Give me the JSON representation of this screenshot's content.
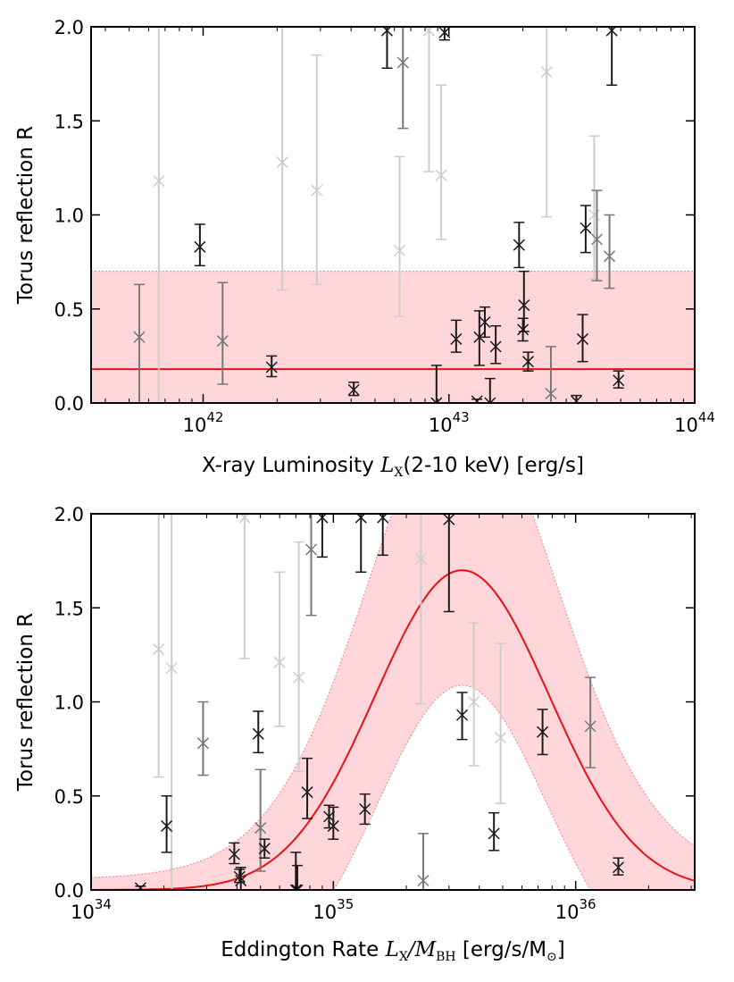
{
  "colors": {
    "band_fill": "#ffd6d9",
    "band_edge": "#f08080",
    "fit_line": "#e8101a",
    "point_dark": "#1a1a1a",
    "point_mid": "#777777",
    "point_light": "#cccccc"
  },
  "chart_data": [
    {
      "type": "scatter",
      "xscale": "log",
      "xlim": [
        3.5e+41,
        1e+44
      ],
      "ylim": [
        0,
        2
      ],
      "ylabel": "Torus reflection R",
      "xlabel": {
        "prefix": "X-ray Luminosity ",
        "var": "L",
        "sub": "X",
        "suffix": "(2-10 keV) [erg/s]"
      },
      "y_ticks": [
        "0.0",
        "0.5",
        "1.0",
        "1.5",
        "2.0"
      ],
      "x_ticks": [
        {
          "base": "10",
          "exp": "42",
          "value": 1e+42
        },
        {
          "base": "10",
          "exp": "43",
          "value": 1e+43
        },
        {
          "base": "10",
          "exp": "44",
          "value": 1e+44
        }
      ],
      "fit": {
        "kind": "constant",
        "value": 0.18,
        "band": [
          0.0,
          0.7
        ]
      },
      "points": [
        {
          "x": 5.5e+41,
          "y": 0.35,
          "lo": 0.0,
          "hi": 0.63,
          "shade": "mid"
        },
        {
          "x": 6.6e+41,
          "y": 1.18,
          "lo": 0.0,
          "hi": 2.0,
          "shade": "light"
        },
        {
          "x": 9.7e+41,
          "y": 0.83,
          "lo": 0.73,
          "hi": 0.95,
          "shade": "dark"
        },
        {
          "x": 1.2e+42,
          "y": 0.33,
          "lo": 0.1,
          "hi": 0.64,
          "shade": "mid"
        },
        {
          "x": 1.9e+42,
          "y": 0.19,
          "lo": 0.14,
          "hi": 0.25,
          "shade": "dark"
        },
        {
          "x": 2.1e+42,
          "y": 1.28,
          "lo": 0.6,
          "hi": 2.0,
          "shade": "light"
        },
        {
          "x": 2.9e+42,
          "y": 1.13,
          "lo": 0.63,
          "hi": 1.85,
          "shade": "light"
        },
        {
          "x": 4.1e+42,
          "y": 0.07,
          "lo": 0.04,
          "hi": 0.11,
          "shade": "dark"
        },
        {
          "x": 5.6e+42,
          "y": 1.98,
          "lo": 1.78,
          "hi": 2.0,
          "shade": "dark"
        },
        {
          "x": 6.3e+42,
          "y": 0.81,
          "lo": 0.46,
          "hi": 1.31,
          "shade": "light"
        },
        {
          "x": 6.5e+42,
          "y": 1.81,
          "lo": 1.46,
          "hi": 2.0,
          "shade": "mid"
        },
        {
          "x": 8.3e+42,
          "y": 1.98,
          "lo": 1.23,
          "hi": 2.0,
          "shade": "light"
        },
        {
          "x": 8.9e+42,
          "y": 0.0,
          "lo": 0.0,
          "hi": 0.2,
          "shade": "dark"
        },
        {
          "x": 9.3e+42,
          "y": 1.21,
          "lo": 0.87,
          "hi": 1.69,
          "shade": "light"
        },
        {
          "x": 9.6e+42,
          "y": 1.97,
          "lo": 1.93,
          "hi": 2.0,
          "shade": "dark"
        },
        {
          "x": 1.07e+43,
          "y": 0.34,
          "lo": 0.27,
          "hi": 0.44,
          "shade": "dark"
        },
        {
          "x": 1.3e+43,
          "y": 0.01,
          "lo": 0.0,
          "hi": 0.02,
          "shade": "dark"
        },
        {
          "x": 1.33e+43,
          "y": 0.35,
          "lo": 0.2,
          "hi": 0.49,
          "shade": "dark"
        },
        {
          "x": 1.4e+43,
          "y": 0.43,
          "lo": 0.35,
          "hi": 0.51,
          "shade": "dark"
        },
        {
          "x": 1.47e+43,
          "y": 0.0,
          "lo": 0.0,
          "hi": 0.13,
          "shade": "dark"
        },
        {
          "x": 1.55e+43,
          "y": 0.3,
          "lo": 0.21,
          "hi": 0.41,
          "shade": "dark"
        },
        {
          "x": 1.93e+43,
          "y": 0.84,
          "lo": 0.72,
          "hi": 0.96,
          "shade": "dark"
        },
        {
          "x": 2e+43,
          "y": 0.39,
          "lo": 0.33,
          "hi": 0.45,
          "shade": "dark"
        },
        {
          "x": 2.02e+43,
          "y": 0.52,
          "lo": 0.38,
          "hi": 0.7,
          "shade": "dark"
        },
        {
          "x": 2.1e+43,
          "y": 0.22,
          "lo": 0.17,
          "hi": 0.27,
          "shade": "dark"
        },
        {
          "x": 2.5e+43,
          "y": 1.76,
          "lo": 0.99,
          "hi": 2.0,
          "shade": "light"
        },
        {
          "x": 2.6e+43,
          "y": 0.05,
          "lo": 0.0,
          "hi": 0.3,
          "shade": "mid"
        },
        {
          "x": 3.3e+43,
          "y": 0.01,
          "lo": 0.0,
          "hi": 0.04,
          "shade": "dark"
        },
        {
          "x": 3.5e+43,
          "y": 0.34,
          "lo": 0.22,
          "hi": 0.47,
          "shade": "dark"
        },
        {
          "x": 3.6e+43,
          "y": 0.93,
          "lo": 0.8,
          "hi": 1.05,
          "shade": "dark"
        },
        {
          "x": 3.9e+43,
          "y": 1.0,
          "lo": 0.66,
          "hi": 1.42,
          "shade": "light"
        },
        {
          "x": 4e+43,
          "y": 0.87,
          "lo": 0.65,
          "hi": 1.13,
          "shade": "mid"
        },
        {
          "x": 4.5e+43,
          "y": 0.78,
          "lo": 0.61,
          "hi": 1.0,
          "shade": "mid"
        },
        {
          "x": 4.6e+43,
          "y": 1.98,
          "lo": 1.69,
          "hi": 2.0,
          "shade": "dark"
        },
        {
          "x": 4.9e+43,
          "y": 0.12,
          "lo": 0.08,
          "hi": 0.17,
          "shade": "dark"
        }
      ]
    },
    {
      "type": "scatter",
      "xscale": "log",
      "xlim": [
        1e+34,
        3.1e+36
      ],
      "ylim": [
        0,
        2
      ],
      "ylabel": "Torus reflection R",
      "xlabel": {
        "prefix": "Eddington Rate ",
        "var": "L",
        "sub": "X",
        "var2": "M",
        "sub2": "BH",
        "suffix": " [erg/s/M",
        "sun": "⊙",
        "close": "]"
      },
      "y_ticks": [
        "0.0",
        "0.5",
        "1.0",
        "1.5",
        "2.0"
      ],
      "x_ticks": [
        {
          "base": "10",
          "exp": "34",
          "value": 1e+34
        },
        {
          "base": "10",
          "exp": "35",
          "value": 1e+35
        },
        {
          "base": "10",
          "exp": "36",
          "value": 1e+36
        }
      ],
      "fit": {
        "kind": "gaussian_in_log",
        "peak_x": 3.4e+35,
        "peak_y": 1.7,
        "sigma_dex": 0.36,
        "band_lower_scale": 0.64,
        "band_upper_add": 0.9,
        "band_upper_width_dex": 0.1,
        "band_floor": 0.06
      },
      "points": [
        {
          "x": 1.6e+34,
          "y": 0.01,
          "lo": 0.0,
          "hi": 0.02,
          "shade": "dark"
        },
        {
          "x": 1.9e+34,
          "y": 1.28,
          "lo": 0.6,
          "hi": 2.0,
          "shade": "light"
        },
        {
          "x": 2.05e+34,
          "y": 0.34,
          "lo": 0.2,
          "hi": 0.5,
          "shade": "dark"
        },
        {
          "x": 2.15e+34,
          "y": 1.18,
          "lo": 0.0,
          "hi": 2.0,
          "shade": "light"
        },
        {
          "x": 2.9e+34,
          "y": 0.78,
          "lo": 0.61,
          "hi": 1.0,
          "shade": "mid"
        },
        {
          "x": 3.9e+34,
          "y": 0.19,
          "lo": 0.14,
          "hi": 0.25,
          "shade": "dark"
        },
        {
          "x": 4.1e+34,
          "y": 0.07,
          "lo": 0.04,
          "hi": 0.11,
          "shade": "dark"
        },
        {
          "x": 4.15e+34,
          "y": 0.05,
          "lo": 0.0,
          "hi": 0.12,
          "shade": "dark"
        },
        {
          "x": 4.3e+34,
          "y": 1.98,
          "lo": 1.23,
          "hi": 2.0,
          "shade": "light"
        },
        {
          "x": 4.9e+34,
          "y": 0.83,
          "lo": 0.73,
          "hi": 0.95,
          "shade": "dark"
        },
        {
          "x": 5e+34,
          "y": 0.33,
          "lo": 0.1,
          "hi": 0.64,
          "shade": "mid"
        },
        {
          "x": 5.2e+34,
          "y": 0.22,
          "lo": 0.17,
          "hi": 0.27,
          "shade": "dark"
        },
        {
          "x": 6e+34,
          "y": 1.21,
          "lo": 0.87,
          "hi": 1.69,
          "shade": "light"
        },
        {
          "x": 7e+34,
          "y": 0.0,
          "lo": 0.0,
          "hi": 0.2,
          "shade": "dark"
        },
        {
          "x": 7.1e+34,
          "y": 0.0,
          "lo": 0.0,
          "hi": 0.13,
          "shade": "dark"
        },
        {
          "x": 7.2e+34,
          "y": 1.13,
          "lo": 0.63,
          "hi": 1.85,
          "shade": "light"
        },
        {
          "x": 7.8e+34,
          "y": 0.52,
          "lo": 0.38,
          "hi": 0.7,
          "shade": "dark"
        },
        {
          "x": 8.1e+34,
          "y": 1.81,
          "lo": 1.46,
          "hi": 2.0,
          "shade": "mid"
        },
        {
          "x": 9e+34,
          "y": 1.98,
          "lo": 1.77,
          "hi": 2.0,
          "shade": "dark"
        },
        {
          "x": 9.6e+34,
          "y": 0.39,
          "lo": 0.33,
          "hi": 0.45,
          "shade": "dark"
        },
        {
          "x": 1e+35,
          "y": 0.34,
          "lo": 0.27,
          "hi": 0.44,
          "shade": "dark"
        },
        {
          "x": 1.3e+35,
          "y": 1.98,
          "lo": 1.69,
          "hi": 2.0,
          "shade": "dark"
        },
        {
          "x": 1.35e+35,
          "y": 0.43,
          "lo": 0.35,
          "hi": 0.51,
          "shade": "dark"
        },
        {
          "x": 1.6e+35,
          "y": 1.98,
          "lo": 1.78,
          "hi": 2.0,
          "shade": "dark"
        },
        {
          "x": 2.3e+35,
          "y": 1.76,
          "lo": 0.99,
          "hi": 2.0,
          "shade": "light"
        },
        {
          "x": 2.35e+35,
          "y": 0.05,
          "lo": 0.0,
          "hi": 0.3,
          "shade": "mid"
        },
        {
          "x": 3e+35,
          "y": 1.97,
          "lo": 1.48,
          "hi": 2.0,
          "shade": "dark"
        },
        {
          "x": 3.4e+35,
          "y": 0.93,
          "lo": 0.8,
          "hi": 1.05,
          "shade": "dark"
        },
        {
          "x": 3.8e+35,
          "y": 1.0,
          "lo": 0.66,
          "hi": 1.42,
          "shade": "light"
        },
        {
          "x": 4.6e+35,
          "y": 0.3,
          "lo": 0.21,
          "hi": 0.41,
          "shade": "dark"
        },
        {
          "x": 4.9e+35,
          "y": 0.81,
          "lo": 0.46,
          "hi": 1.31,
          "shade": "light"
        },
        {
          "x": 7.3e+35,
          "y": 0.84,
          "lo": 0.72,
          "hi": 0.96,
          "shade": "dark"
        },
        {
          "x": 1.15e+36,
          "y": 0.87,
          "lo": 0.65,
          "hi": 1.13,
          "shade": "mid"
        },
        {
          "x": 1.5e+36,
          "y": 0.12,
          "lo": 0.08,
          "hi": 0.17,
          "shade": "dark"
        }
      ]
    }
  ]
}
